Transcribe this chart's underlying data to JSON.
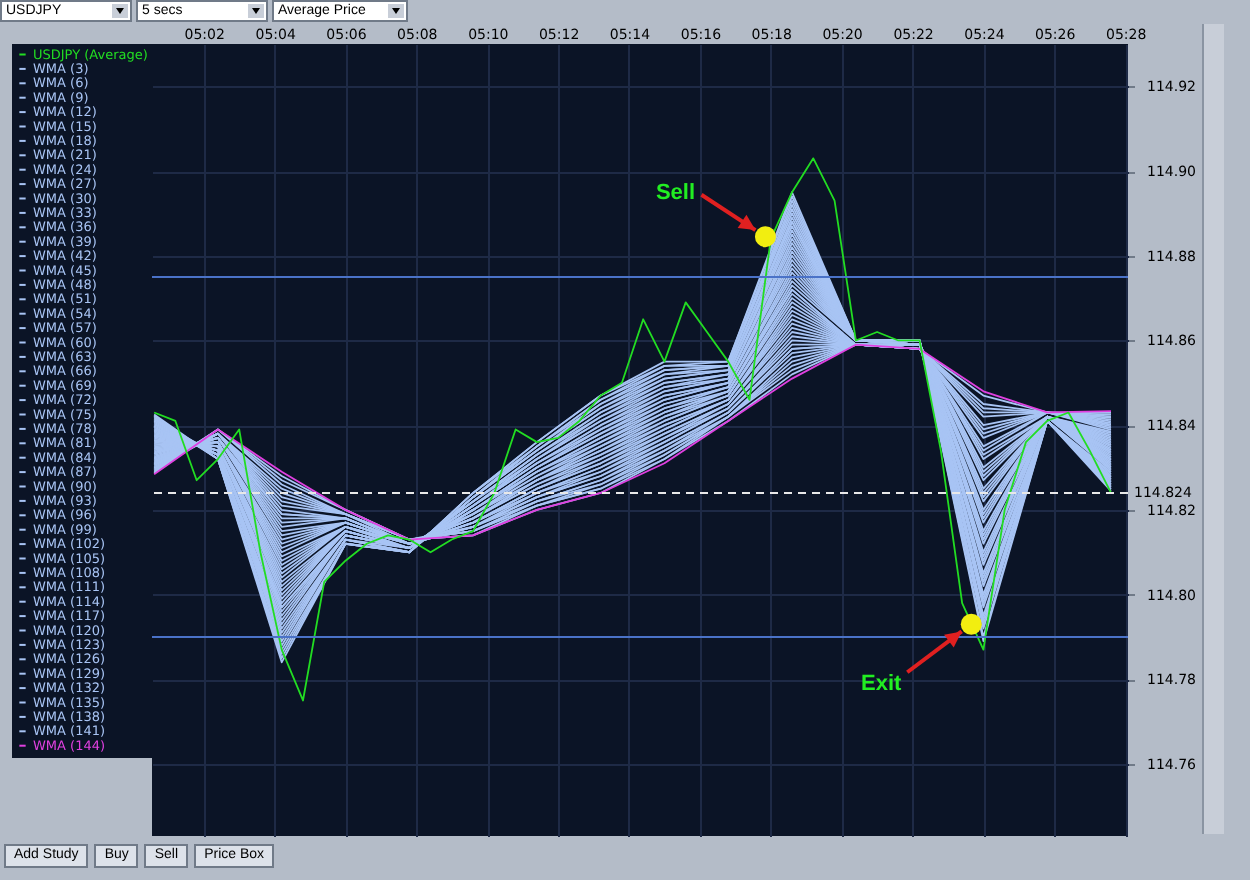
{
  "chart_data": {
    "type": "line",
    "x": [
      5.01,
      5.04,
      5.07,
      5.1,
      5.13,
      5.16,
      5.19,
      5.22,
      5.25,
      5.28,
      5.31,
      5.34,
      5.37,
      5.4,
      5.43,
      5.46
    ],
    "xlim": [
      5.009,
      5.468
    ],
    "xticks": [
      {
        "value": 5.0333,
        "label": "05:02"
      },
      {
        "value": 5.0667,
        "label": "05:04"
      },
      {
        "value": 5.1,
        "label": "05:06"
      },
      {
        "value": 5.1333,
        "label": "05:08"
      },
      {
        "value": 5.1667,
        "label": "05:10"
      },
      {
        "value": 5.2,
        "label": "05:12"
      },
      {
        "value": 5.2333,
        "label": "05:14"
      },
      {
        "value": 5.2667,
        "label": "05:16"
      },
      {
        "value": 5.3,
        "label": "05:18"
      },
      {
        "value": 5.3333,
        "label": "05:20"
      },
      {
        "value": 5.3667,
        "label": "05:22"
      },
      {
        "value": 5.4,
        "label": "05:24"
      },
      {
        "value": 5.4333,
        "label": "05:26"
      },
      {
        "value": 5.4667,
        "label": "05:28"
      }
    ],
    "ylim": [
      114.743,
      114.93
    ],
    "yticks": [
      114.76,
      114.78,
      {
        "value": 114.8,
        "label": "114.80"
      },
      114.82,
      114.84,
      114.86,
      114.88,
      {
        "value": 114.9,
        "label": "114.90"
      },
      114.92
    ],
    "grid": true,
    "legend": "top left",
    "series": [
      {
        "name": "USDJPY (Average)",
        "color": "#22dd22",
        "x": [
          5.01,
          5.02,
          5.03,
          5.04,
          5.05,
          5.06,
          5.07,
          5.08,
          5.09,
          5.1,
          5.11,
          5.12,
          5.13,
          5.14,
          5.15,
          5.16,
          5.17,
          5.18,
          5.19,
          5.2,
          5.21,
          5.22,
          5.23,
          5.24,
          5.25,
          5.26,
          5.27,
          5.28,
          5.29,
          5.3,
          5.31,
          5.32,
          5.33,
          5.34,
          5.35,
          5.36,
          5.37,
          5.38,
          5.39,
          5.4,
          5.41,
          5.42,
          5.43,
          5.44,
          5.45,
          5.46
        ],
        "values": [
          114.843,
          114.841,
          114.827,
          114.832,
          114.839,
          114.81,
          114.787,
          114.775,
          114.803,
          114.808,
          114.812,
          114.814,
          114.813,
          114.81,
          114.813,
          114.815,
          114.824,
          114.839,
          114.836,
          114.837,
          114.841,
          114.847,
          114.85,
          114.865,
          114.855,
          114.869,
          114.862,
          114.855,
          114.846,
          114.884,
          114.895,
          114.903,
          114.893,
          114.86,
          114.862,
          114.86,
          114.86,
          114.834,
          114.798,
          114.787,
          114.82,
          114.836,
          114.841,
          114.843,
          114.834,
          114.824
        ]
      },
      {
        "name": "WMA (3)",
        "color": "#a8c4f4",
        "values": [
          114.8425,
          114.832,
          114.784,
          114.812,
          114.81,
          114.824,
          114.836,
          114.847,
          114.855,
          114.855,
          114.895,
          114.86,
          114.86,
          114.789,
          114.841,
          114.8245
        ]
      },
      {
        "name": "WMA (6)",
        "color": "#a8c4f4",
        "values": [
          114.8422,
          114.832,
          114.785,
          114.812,
          114.81,
          114.824,
          114.836,
          114.847,
          114.854,
          114.855,
          114.894,
          114.86,
          114.86,
          114.79,
          114.841,
          114.8249
        ]
      },
      {
        "name": "WMA (9)",
        "color": "#a8c4f4",
        "values": [
          114.8419,
          114.832,
          114.786,
          114.812,
          114.81,
          114.824,
          114.835,
          114.846,
          114.854,
          114.854,
          114.893,
          114.86,
          114.86,
          114.792,
          114.841,
          114.8253
        ]
      },
      {
        "name": "WMA (12)",
        "color": "#a8c4f4",
        "values": [
          114.8416,
          114.832,
          114.787,
          114.812,
          114.81,
          114.823,
          114.835,
          114.846,
          114.853,
          114.854,
          114.892,
          114.86,
          114.86,
          114.793,
          114.841,
          114.8257
        ]
      },
      {
        "name": "WMA (15)",
        "color": "#a8c4f4",
        "values": [
          114.8413,
          114.833,
          114.788,
          114.813,
          114.81,
          114.823,
          114.835,
          114.845,
          114.853,
          114.854,
          114.891,
          114.86,
          114.86,
          114.794,
          114.841,
          114.8261
        ]
      },
      {
        "name": "WMA (18)",
        "color": "#a8c4f4",
        "values": [
          114.841,
          114.833,
          114.789,
          114.813,
          114.81,
          114.823,
          114.834,
          114.845,
          114.852,
          114.854,
          114.89,
          114.86,
          114.86,
          114.795,
          114.841,
          114.8265
        ]
      },
      {
        "name": "WMA (21)",
        "color": "#a8c4f4",
        "values": [
          114.8407,
          114.833,
          114.79,
          114.813,
          114.81,
          114.823,
          114.834,
          114.844,
          114.852,
          114.853,
          114.889,
          114.86,
          114.86,
          114.797,
          114.841,
          114.8269
        ]
      },
      {
        "name": "WMA (24)",
        "color": "#a8c4f4",
        "values": [
          114.8404,
          114.833,
          114.791,
          114.813,
          114.81,
          114.823,
          114.834,
          114.844,
          114.851,
          114.853,
          114.888,
          114.86,
          114.86,
          114.798,
          114.841,
          114.8273
        ]
      },
      {
        "name": "WMA (27)",
        "color": "#a8c4f4",
        "values": [
          114.8401,
          114.833,
          114.792,
          114.813,
          114.811,
          114.822,
          114.833,
          114.843,
          114.851,
          114.853,
          114.888,
          114.86,
          114.86,
          114.799,
          114.841,
          114.8277
        ]
      },
      {
        "name": "WMA (30)",
        "color": "#a8c4f4",
        "values": [
          114.8398,
          114.833,
          114.793,
          114.814,
          114.811,
          114.822,
          114.833,
          114.843,
          114.85,
          114.852,
          114.887,
          114.86,
          114.86,
          114.8,
          114.841,
          114.8281
        ]
      },
      {
        "name": "WMA (33)",
        "color": "#a8c4f4",
        "values": [
          114.8395,
          114.833,
          114.794,
          114.814,
          114.811,
          114.822,
          114.833,
          114.842,
          114.85,
          114.852,
          114.886,
          114.86,
          114.86,
          114.802,
          114.841,
          114.8285
        ]
      },
      {
        "name": "WMA (36)",
        "color": "#a8c4f4",
        "values": [
          114.8392,
          114.834,
          114.795,
          114.814,
          114.811,
          114.822,
          114.832,
          114.842,
          114.849,
          114.852,
          114.885,
          114.86,
          114.86,
          114.803,
          114.841,
          114.8289
        ]
      },
      {
        "name": "WMA (39)",
        "color": "#a8c4f4",
        "values": [
          114.8389,
          114.834,
          114.796,
          114.814,
          114.811,
          114.821,
          114.832,
          114.841,
          114.849,
          114.851,
          114.884,
          114.86,
          114.859,
          114.804,
          114.842,
          114.8293
        ]
      },
      {
        "name": "WMA (42)",
        "color": "#a8c4f4",
        "values": [
          114.8386,
          114.834,
          114.797,
          114.814,
          114.811,
          114.821,
          114.832,
          114.841,
          114.848,
          114.851,
          114.883,
          114.86,
          114.859,
          114.805,
          114.842,
          114.8297
        ]
      },
      {
        "name": "WMA (45)",
        "color": "#a8c4f4",
        "values": [
          114.8383,
          114.834,
          114.797,
          114.814,
          114.811,
          114.821,
          114.831,
          114.84,
          114.848,
          114.851,
          114.882,
          114.86,
          114.859,
          114.807,
          114.842,
          114.8301
        ]
      },
      {
        "name": "WMA (48)",
        "color": "#a8c4f4",
        "values": [
          114.838,
          114.834,
          114.798,
          114.815,
          114.811,
          114.821,
          114.831,
          114.84,
          114.847,
          114.85,
          114.881,
          114.86,
          114.859,
          114.808,
          114.842,
          114.8305
        ]
      },
      {
        "name": "WMA (51)",
        "color": "#a8c4f4",
        "values": [
          114.8377,
          114.834,
          114.799,
          114.815,
          114.811,
          114.821,
          114.831,
          114.839,
          114.847,
          114.85,
          114.88,
          114.86,
          114.859,
          114.809,
          114.842,
          114.8309
        ]
      },
      {
        "name": "WMA (54)",
        "color": "#a8c4f4",
        "values": [
          114.8374,
          114.835,
          114.8,
          114.815,
          114.811,
          114.82,
          114.83,
          114.839,
          114.846,
          114.85,
          114.879,
          114.86,
          114.859,
          114.81,
          114.842,
          114.8313
        ]
      },
      {
        "name": "WMA (57)",
        "color": "#a8c4f4",
        "values": [
          114.8371,
          114.835,
          114.801,
          114.815,
          114.811,
          114.82,
          114.83,
          114.838,
          114.846,
          114.85,
          114.878,
          114.86,
          114.859,
          114.812,
          114.842,
          114.8317
        ]
      },
      {
        "name": "WMA (60)",
        "color": "#a8c4f4",
        "values": [
          114.8368,
          114.835,
          114.802,
          114.815,
          114.811,
          114.82,
          114.83,
          114.838,
          114.845,
          114.849,
          114.877,
          114.86,
          114.859,
          114.813,
          114.842,
          114.8321
        ]
      },
      {
        "name": "WMA (63)",
        "color": "#a8c4f4",
        "values": [
          114.8365,
          114.835,
          114.803,
          114.815,
          114.811,
          114.82,
          114.829,
          114.837,
          114.845,
          114.849,
          114.876,
          114.86,
          114.859,
          114.814,
          114.842,
          114.8325
        ]
      },
      {
        "name": "WMA (66)",
        "color": "#a8c4f4",
        "values": [
          114.8362,
          114.835,
          114.804,
          114.816,
          114.811,
          114.82,
          114.829,
          114.837,
          114.844,
          114.849,
          114.875,
          114.86,
          114.859,
          114.815,
          114.842,
          114.8329
        ]
      },
      {
        "name": "WMA (69)",
        "color": "#a8c4f4",
        "values": [
          114.8359,
          114.835,
          114.805,
          114.816,
          114.811,
          114.819,
          114.829,
          114.836,
          114.844,
          114.848,
          114.874,
          114.86,
          114.859,
          114.817,
          114.842,
          114.8333
        ]
      },
      {
        "name": "WMA (72)",
        "color": "#a8c4f4",
        "values": [
          114.8356,
          114.835,
          114.806,
          114.816,
          114.812,
          114.819,
          114.828,
          114.836,
          114.843,
          114.848,
          114.873,
          114.86,
          114.859,
          114.818,
          114.842,
          114.8337
        ]
      },
      {
        "name": "WMA (75)",
        "color": "#a8c4f4",
        "values": [
          114.8353,
          114.836,
          114.807,
          114.816,
          114.812,
          114.819,
          114.828,
          114.835,
          114.843,
          114.848,
          114.872,
          114.859,
          114.859,
          114.819,
          114.842,
          114.8341
        ]
      },
      {
        "name": "WMA (78)",
        "color": "#a8c4f4",
        "values": [
          114.835,
          114.836,
          114.808,
          114.816,
          114.812,
          114.819,
          114.827,
          114.835,
          114.842,
          114.848,
          114.872,
          114.859,
          114.859,
          114.82,
          114.842,
          114.8345
        ]
      },
      {
        "name": "WMA (81)",
        "color": "#a8c4f4",
        "values": [
          114.8347,
          114.836,
          114.809,
          114.816,
          114.812,
          114.818,
          114.827,
          114.834,
          114.842,
          114.847,
          114.871,
          114.859,
          114.859,
          114.822,
          114.842,
          114.8349
        ]
      },
      {
        "name": "WMA (84)",
        "color": "#a8c4f4",
        "values": [
          114.8344,
          114.836,
          114.81,
          114.817,
          114.812,
          114.818,
          114.827,
          114.834,
          114.841,
          114.847,
          114.87,
          114.859,
          114.859,
          114.823,
          114.842,
          114.8353
        ]
      },
      {
        "name": "WMA (87)",
        "color": "#a8c4f4",
        "values": [
          114.8341,
          114.836,
          114.811,
          114.817,
          114.812,
          114.818,
          114.827,
          114.833,
          114.841,
          114.847,
          114.869,
          114.859,
          114.859,
          114.824,
          114.842,
          114.8357
        ]
      },
      {
        "name": "WMA (90)",
        "color": "#a8c4f4",
        "values": [
          114.8338,
          114.836,
          114.812,
          114.817,
          114.812,
          114.818,
          114.826,
          114.833,
          114.84,
          114.846,
          114.868,
          114.859,
          114.859,
          114.825,
          114.842,
          114.8361
        ]
      },
      {
        "name": "WMA (93)",
        "color": "#a8c4f4",
        "values": [
          114.8335,
          114.837,
          114.813,
          114.817,
          114.812,
          114.818,
          114.826,
          114.832,
          114.84,
          114.846,
          114.867,
          114.859,
          114.859,
          114.827,
          114.842,
          114.8365
        ]
      },
      {
        "name": "WMA (96)",
        "color": "#a8c4f4",
        "values": [
          114.8332,
          114.837,
          114.814,
          114.817,
          114.812,
          114.817,
          114.825,
          114.832,
          114.839,
          114.846,
          114.866,
          114.859,
          114.859,
          114.828,
          114.842,
          114.8369
        ]
      },
      {
        "name": "WMA (99)",
        "color": "#a8c4f4",
        "values": [
          114.8329,
          114.837,
          114.815,
          114.817,
          114.812,
          114.817,
          114.825,
          114.831,
          114.839,
          114.846,
          114.865,
          114.859,
          114.859,
          114.829,
          114.842,
          114.8373
        ]
      },
      {
        "name": "WMA (102)",
        "color": "#a8c4f4",
        "values": [
          114.8326,
          114.837,
          114.816,
          114.818,
          114.812,
          114.817,
          114.825,
          114.831,
          114.838,
          114.845,
          114.864,
          114.859,
          114.859,
          114.83,
          114.842,
          114.8377
        ]
      },
      {
        "name": "WMA (105)",
        "color": "#a8c4f4",
        "values": [
          114.8323,
          114.837,
          114.817,
          114.818,
          114.812,
          114.817,
          114.824,
          114.83,
          114.838,
          114.845,
          114.863,
          114.859,
          114.859,
          114.832,
          114.842,
          114.8381
        ]
      },
      {
        "name": "WMA (108)",
        "color": "#a8c4f4",
        "values": [
          114.832,
          114.837,
          114.818,
          114.818,
          114.812,
          114.817,
          114.824,
          114.83,
          114.837,
          114.845,
          114.862,
          114.859,
          114.859,
          114.833,
          114.842,
          114.8385
        ]
      },
      {
        "name": "WMA (111)",
        "color": "#a8c4f4",
        "values": [
          114.8317,
          114.837,
          114.819,
          114.818,
          114.812,
          114.816,
          114.824,
          114.829,
          114.837,
          114.844,
          114.861,
          114.859,
          114.858,
          114.834,
          114.843,
          114.8389
        ]
      },
      {
        "name": "WMA (114)",
        "color": "#a8c4f4",
        "values": [
          114.8314,
          114.838,
          114.819,
          114.818,
          114.812,
          114.816,
          114.823,
          114.829,
          114.836,
          114.844,
          114.86,
          114.859,
          114.858,
          114.835,
          114.843,
          114.8393
        ]
      },
      {
        "name": "WMA (117)",
        "color": "#a8c4f4",
        "values": [
          114.8311,
          114.838,
          114.82,
          114.818,
          114.812,
          114.816,
          114.823,
          114.828,
          114.836,
          114.844,
          114.859,
          114.859,
          114.858,
          114.837,
          114.843,
          114.8397
        ]
      },
      {
        "name": "WMA (120)",
        "color": "#a8c4f4",
        "values": [
          114.8308,
          114.838,
          114.821,
          114.819,
          114.812,
          114.816,
          114.823,
          114.828,
          114.835,
          114.843,
          114.858,
          114.859,
          114.858,
          114.838,
          114.843,
          114.8401
        ]
      },
      {
        "name": "WMA (123)",
        "color": "#a8c4f4",
        "values": [
          114.8305,
          114.838,
          114.822,
          114.819,
          114.813,
          114.816,
          114.822,
          114.827,
          114.835,
          114.843,
          114.858,
          114.859,
          114.858,
          114.839,
          114.843,
          114.8405
        ]
      },
      {
        "name": "WMA (126)",
        "color": "#a8c4f4",
        "values": [
          114.8302,
          114.838,
          114.823,
          114.819,
          114.813,
          114.815,
          114.822,
          114.827,
          114.834,
          114.843,
          114.857,
          114.859,
          114.858,
          114.84,
          114.843,
          114.8409
        ]
      },
      {
        "name": "WMA (129)",
        "color": "#a8c4f4",
        "values": [
          114.8299,
          114.838,
          114.824,
          114.819,
          114.813,
          114.815,
          114.822,
          114.826,
          114.834,
          114.842,
          114.856,
          114.859,
          114.858,
          114.842,
          114.843,
          114.8413
        ]
      },
      {
        "name": "WMA (132)",
        "color": "#a8c4f4",
        "values": [
          114.8296,
          114.838,
          114.825,
          114.819,
          114.813,
          114.815,
          114.821,
          114.826,
          114.833,
          114.842,
          114.855,
          114.859,
          114.858,
          114.843,
          114.843,
          114.8417
        ]
      },
      {
        "name": "WMA (135)",
        "color": "#a8c4f4",
        "values": [
          114.8293,
          114.839,
          114.826,
          114.819,
          114.813,
          114.815,
          114.821,
          114.825,
          114.833,
          114.842,
          114.854,
          114.859,
          114.858,
          114.844,
          114.843,
          114.8421
        ]
      },
      {
        "name": "WMA (138)",
        "color": "#a8c4f4",
        "values": [
          114.829,
          114.839,
          114.827,
          114.82,
          114.813,
          114.814,
          114.821,
          114.825,
          114.832,
          114.842,
          114.853,
          114.859,
          114.858,
          114.845,
          114.843,
          114.8425
        ]
      },
      {
        "name": "WMA (141)",
        "color": "#a8c4f4",
        "values": [
          114.8287,
          114.839,
          114.828,
          114.82,
          114.813,
          114.814,
          114.82,
          114.824,
          114.832,
          114.841,
          114.852,
          114.859,
          114.858,
          114.847,
          114.843,
          114.8429
        ]
      },
      {
        "name": "WMA (144)",
        "color": "#e040e0",
        "values": [
          114.8284,
          114.839,
          114.829,
          114.82,
          114.813,
          114.814,
          114.82,
          114.824,
          114.831,
          114.841,
          114.851,
          114.859,
          114.858,
          114.848,
          114.843,
          114.8433
        ]
      },
      {
        "type": "scatter",
        "color": "#f2ee10",
        "x": [
          5.2975,
          5.3943
        ],
        "values": [
          114.8845,
          114.793
        ]
      }
    ],
    "ref_lines": [
      {
        "axis": "y",
        "value": 114.875,
        "color": "#4a72c8",
        "line_style": "solid"
      },
      {
        "axis": "y",
        "value": 114.79,
        "color": "#4a72c8",
        "line_style": "solid"
      },
      {
        "axis": "y",
        "value": 114.824,
        "label": "114.824",
        "color": "#e8e8e8",
        "line_style": "dashed"
      }
    ],
    "annotations": [
      "USDJPY",
      "5 secs",
      "Average Price",
      "Add Study",
      "Buy",
      "Sell",
      "Price Box",
      {
        "text": "Sell",
        "x": 5.2975,
        "y": 114.8845
      },
      {
        "text": "Exit",
        "x": 5.3943,
        "y": 114.793
      }
    ]
  }
}
